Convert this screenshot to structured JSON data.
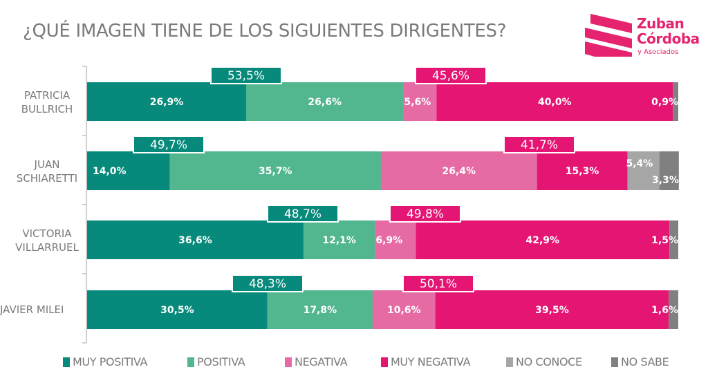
{
  "header": {
    "title": "¿QUÉ IMAGEN TIENE DE LOS SIGUIENTES DIRIGENTES?"
  },
  "logo": {
    "line1": "Zuban",
    "line2": "Córdoba",
    "line3": "y Asociados",
    "color": "#e5236f"
  },
  "chart_data": {
    "type": "bar",
    "orientation": "horizontal",
    "stacked": true,
    "title": "¿QUÉ IMAGEN TIENE DE LOS SIGUIENTES DIRIGENTES?",
    "xlabel": "",
    "ylabel": "",
    "xlim": [
      0,
      100
    ],
    "grid": false,
    "legend_position": "bottom",
    "categories": [
      "PATRICIA\nBULLRICH",
      "JUAN\nSCHIARETTI",
      "VICTORIA\nVILLARRUEL",
      "JAVIER MILEI"
    ],
    "series": [
      {
        "name": "MUY POSITIVA",
        "color": "#078a7b",
        "values": [
          26.9,
          14.0,
          36.6,
          30.5
        ],
        "labels": [
          "26,9%",
          "14,0%",
          "36,6%",
          "30,5%"
        ]
      },
      {
        "name": "POSITIVA",
        "color": "#52b68f",
        "values": [
          26.6,
          35.7,
          12.1,
          17.8
        ],
        "labels": [
          "26,6%",
          "35,7%",
          "12,1%",
          "17,8%"
        ]
      },
      {
        "name": "NEGATIVA",
        "color": "#e66ba4",
        "values": [
          5.6,
          26.4,
          6.9,
          10.6
        ],
        "labels": [
          "5,6%",
          "26,4%",
          "6,9%",
          "10,6%"
        ]
      },
      {
        "name": "MUY NEGATIVA",
        "color": "#e51574",
        "values": [
          40.0,
          15.3,
          42.9,
          39.5
        ],
        "labels": [
          "40,0%",
          "15,3%",
          "42,9%",
          "39,5%"
        ]
      },
      {
        "name": "NO CONOCE",
        "color": "#a6a6a6",
        "values": [
          0.0,
          5.4,
          0.0,
          0.0
        ],
        "labels": [
          "",
          "5,4%",
          "",
          ""
        ]
      },
      {
        "name": "NO SABE",
        "color": "#808080",
        "values": [
          0.9,
          3.3,
          1.5,
          1.6
        ],
        "labels": [
          "0,9%",
          "3,3%",
          "1,5%",
          "1,6%"
        ]
      }
    ],
    "totals": {
      "positive": {
        "color": "#078a7b",
        "values": [
          53.5,
          49.7,
          48.7,
          48.3
        ],
        "labels": [
          "53,5%",
          "49,7%",
          "48,7%",
          "48,3%"
        ]
      },
      "negative": {
        "color": "#e51574",
        "values": [
          45.6,
          41.7,
          49.8,
          50.1
        ],
        "labels": [
          "45,6%",
          "41,7%",
          "49,8%",
          "50,1%"
        ]
      }
    }
  },
  "legend": [
    {
      "label": "MUY POSITIVA",
      "color": "#078a7b"
    },
    {
      "label": "POSITIVA",
      "color": "#52b68f"
    },
    {
      "label": "NEGATIVA",
      "color": "#e66ba4"
    },
    {
      "label": "MUY NEGATIVA",
      "color": "#e51574"
    },
    {
      "label": "NO CONOCE",
      "color": "#a6a6a6"
    },
    {
      "label": "NO SABE",
      "color": "#808080"
    }
  ]
}
